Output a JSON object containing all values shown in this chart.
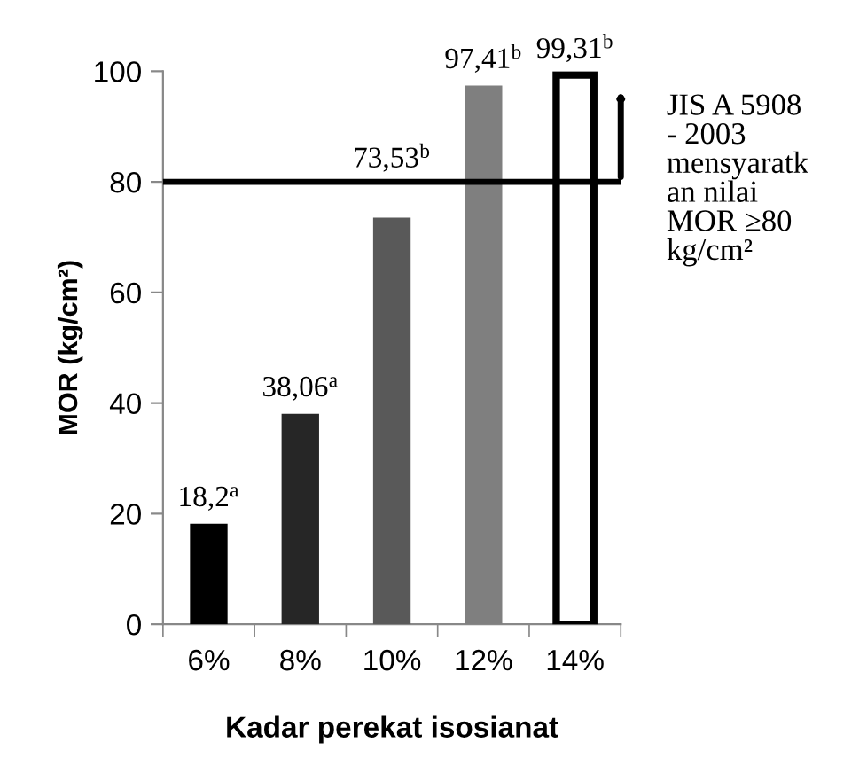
{
  "chart_data": {
    "type": "bar",
    "xlabel": "Kadar perekat isosianat",
    "ylabel": "MOR (kg/cm²)",
    "categories": [
      "6%",
      "8%",
      "10%",
      "12%",
      "14%"
    ],
    "values": [
      18.2,
      38.06,
      73.53,
      97.41,
      99.31
    ],
    "colors": [
      "#000000",
      "#262626",
      "#595959",
      "#7f7f7f",
      "#ffffff"
    ],
    "value_labels": [
      "18,2$^{a}$",
      "38,06$^{a}$",
      "73,53$^{b}$",
      "97,41$^{b}$",
      "99,31$^{b}$"
    ],
    "ylim": [
      0,
      100
    ],
    "yticks": [
      0,
      20,
      40,
      60,
      80,
      100
    ],
    "ref_lines": [
      {
        "axis": "y",
        "value": 80,
        "label": "JIS A 5908\n- 2003\nmensyaratk\nan nilai\nMOR ≥80\nkg/cm²",
        "color": "#000000"
      }
    ],
    "grid": false,
    "legend": false
  }
}
